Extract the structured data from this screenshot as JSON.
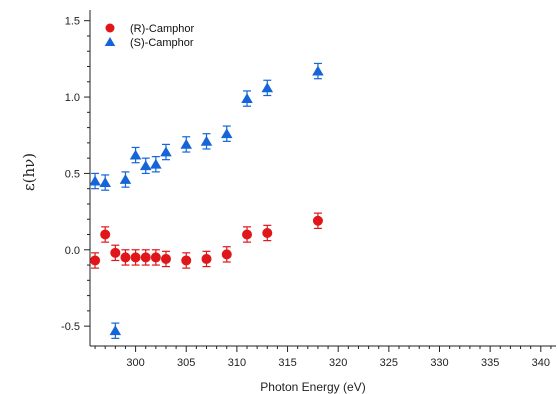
{
  "chart_data": {
    "type": "scatter",
    "xlabel": "Photon Energy (eV)",
    "ylabel": "ε(hν)",
    "xlim": [
      295.5,
      341.5
    ],
    "ylim": [
      -0.63,
      1.57
    ],
    "xticks": [
      300,
      305,
      310,
      315,
      320,
      325,
      330,
      335,
      340
    ],
    "yticks": [
      -0.5,
      0.0,
      0.5,
      1.0,
      1.5
    ],
    "ytick_labels": [
      "-0.5",
      "0.0",
      "0.5",
      "1.0",
      "1.5"
    ],
    "grid": false,
    "legend_position": "top-left",
    "series": [
      {
        "name": "(R)-Camphor",
        "marker": "circle",
        "color": "#e0161b",
        "points": [
          {
            "x": 296,
            "y": -0.07,
            "err": 0.05
          },
          {
            "x": 297,
            "y": 0.1,
            "err": 0.05
          },
          {
            "x": 298,
            "y": -0.02,
            "err": 0.05
          },
          {
            "x": 299,
            "y": -0.05,
            "err": 0.05
          },
          {
            "x": 300,
            "y": -0.05,
            "err": 0.05
          },
          {
            "x": 301,
            "y": -0.05,
            "err": 0.05
          },
          {
            "x": 302,
            "y": -0.05,
            "err": 0.05
          },
          {
            "x": 303,
            "y": -0.06,
            "err": 0.05
          },
          {
            "x": 305,
            "y": -0.07,
            "err": 0.05
          },
          {
            "x": 307,
            "y": -0.06,
            "err": 0.05
          },
          {
            "x": 309,
            "y": -0.03,
            "err": 0.05
          },
          {
            "x": 311,
            "y": 0.1,
            "err": 0.05
          },
          {
            "x": 313,
            "y": 0.11,
            "err": 0.05
          },
          {
            "x": 318,
            "y": 0.19,
            "err": 0.05
          }
        ]
      },
      {
        "name": "(S)-Camphor",
        "marker": "triangle",
        "color": "#1565d8",
        "points": [
          {
            "x": 296,
            "y": 0.45,
            "err": 0.05
          },
          {
            "x": 297,
            "y": 0.44,
            "err": 0.05
          },
          {
            "x": 298,
            "y": -0.53,
            "err": 0.05
          },
          {
            "x": 299,
            "y": 0.46,
            "err": 0.05
          },
          {
            "x": 300,
            "y": 0.62,
            "err": 0.05
          },
          {
            "x": 301,
            "y": 0.55,
            "err": 0.05
          },
          {
            "x": 302,
            "y": 0.56,
            "err": 0.05
          },
          {
            "x": 303,
            "y": 0.64,
            "err": 0.05
          },
          {
            "x": 305,
            "y": 0.69,
            "err": 0.05
          },
          {
            "x": 307,
            "y": 0.71,
            "err": 0.05
          },
          {
            "x": 309,
            "y": 0.76,
            "err": 0.05
          },
          {
            "x": 311,
            "y": 0.99,
            "err": 0.05
          },
          {
            "x": 313,
            "y": 1.06,
            "err": 0.05
          },
          {
            "x": 318,
            "y": 1.17,
            "err": 0.05
          }
        ]
      }
    ]
  }
}
